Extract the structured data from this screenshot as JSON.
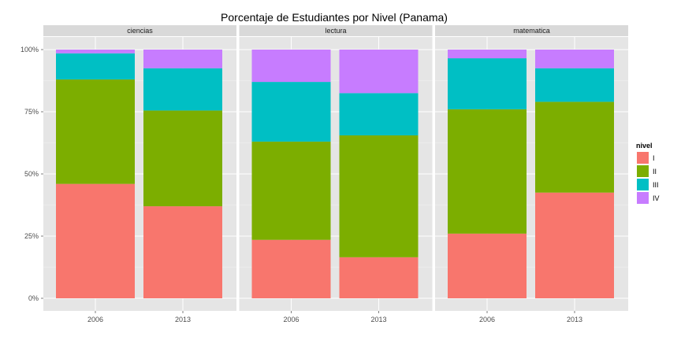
{
  "chart_data": {
    "type": "bar",
    "stacked": true,
    "title": "Porcentaje de Estudiantes por Nivel (Panama)",
    "xlabel": "",
    "ylabel": "",
    "ylim": [
      0,
      1
    ],
    "yticks": [
      {
        "value": 0,
        "label": "0%"
      },
      {
        "value": 0.25,
        "label": "25%"
      },
      {
        "value": 0.5,
        "label": "50%"
      },
      {
        "value": 0.75,
        "label": "75%"
      },
      {
        "value": 1,
        "label": "100%"
      }
    ],
    "grid": true,
    "legend": {
      "title": "nivel",
      "placement": "right",
      "items": [
        {
          "label": "I",
          "color": "#F8766D"
        },
        {
          "label": "II",
          "color": "#7CAE00"
        },
        {
          "label": "III",
          "color": "#00BFC4"
        },
        {
          "label": "IV",
          "color": "#C77CFF"
        }
      ]
    },
    "facets": [
      {
        "name": "ciencias",
        "categories": [
          "2006",
          "2013"
        ],
        "values": [
          [
            0.46,
            0.42,
            0.105,
            0.015
          ],
          [
            0.37,
            0.385,
            0.17,
            0.075
          ]
        ]
      },
      {
        "name": "lectura",
        "categories": [
          "2006",
          "2013"
        ],
        "values": [
          [
            0.235,
            0.395,
            0.24,
            0.13
          ],
          [
            0.165,
            0.49,
            0.17,
            0.175
          ]
        ]
      },
      {
        "name": "matematica",
        "categories": [
          "2006",
          "2013"
        ],
        "values": [
          [
            0.26,
            0.5,
            0.205,
            0.035
          ],
          [
            0.425,
            0.365,
            0.135,
            0.075
          ]
        ]
      }
    ]
  }
}
